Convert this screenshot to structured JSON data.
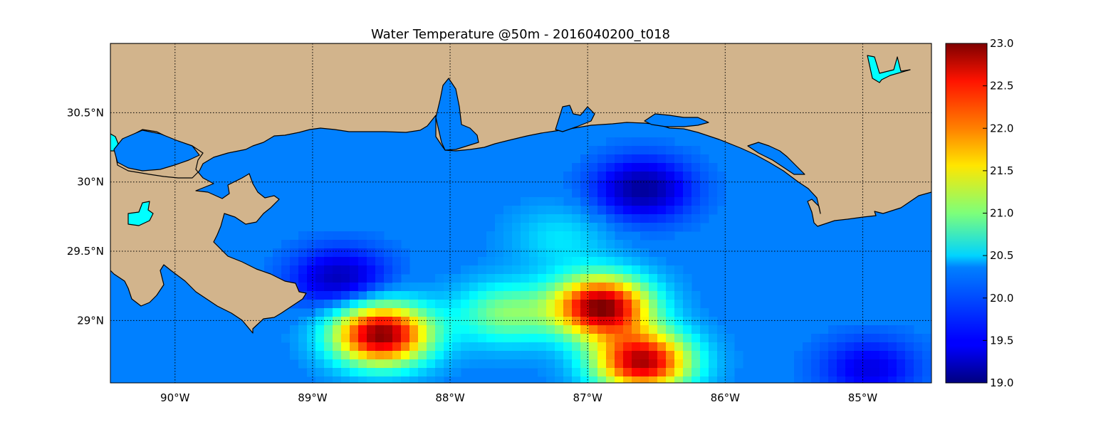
{
  "title": "Water Temperature @50m - 2016040200_t018",
  "colors": {
    "land": "#d2b48c",
    "ocean": "#0080ff",
    "lakes": "#00ffff",
    "frame": "#000000"
  },
  "map": {
    "lon_range": [
      -90.47,
      -84.5
    ],
    "lat_range": [
      28.55,
      31.0
    ],
    "grid": true,
    "lon_ticks": [
      {
        "value": -90,
        "label": "90°W"
      },
      {
        "value": -89,
        "label": "89°W"
      },
      {
        "value": -88,
        "label": "88°W"
      },
      {
        "value": -87,
        "label": "87°W"
      },
      {
        "value": -86,
        "label": "86°W"
      },
      {
        "value": -85,
        "label": "85°W"
      }
    ],
    "lat_ticks": [
      {
        "value": 29.0,
        "label": "29°N"
      },
      {
        "value": 29.5,
        "label": "29.5°N"
      },
      {
        "value": 30.0,
        "label": "30°N"
      },
      {
        "value": 30.5,
        "label": "30.5°N"
      }
    ]
  },
  "colorbar": {
    "min": 19.0,
    "max": 23.0,
    "colormap": "jet",
    "ticks": [
      "19.0",
      "19.5",
      "20.0",
      "20.5",
      "21.0",
      "21.5",
      "22.0",
      "22.5",
      "23.0"
    ]
  },
  "chart_data": {
    "type": "heatmap",
    "title": "Water Temperature @50m - 2016040200_t018",
    "variable": "Water Temperature",
    "units_range": [
      19.0,
      23.0
    ],
    "features": [
      {
        "name": "warm eddy west",
        "lon": -88.5,
        "lat": 28.9,
        "value": 23.0
      },
      {
        "name": "warm band center",
        "lon": -86.9,
        "lat": 29.1,
        "value": 23.0
      },
      {
        "name": "warm tongue south",
        "lon": -86.6,
        "lat": 28.7,
        "value": 22.8
      },
      {
        "name": "cold shelf pool",
        "lon": -86.6,
        "lat": 29.95,
        "value": 19.1
      },
      {
        "name": "cold edge west",
        "lon": -88.8,
        "lat": 29.3,
        "value": 19.2
      },
      {
        "name": "cool pocket",
        "lon": -87.2,
        "lat": 29.6,
        "value": 20.4
      },
      {
        "name": "green filament",
        "lon": -87.6,
        "lat": 29.05,
        "value": 21.0
      },
      {
        "name": "southeast patch",
        "lon": -84.95,
        "lat": 28.65,
        "value": 19.4
      },
      {
        "name": "background shelf",
        "lon": -88.0,
        "lat": 30.1,
        "value": 20.0
      }
    ]
  }
}
